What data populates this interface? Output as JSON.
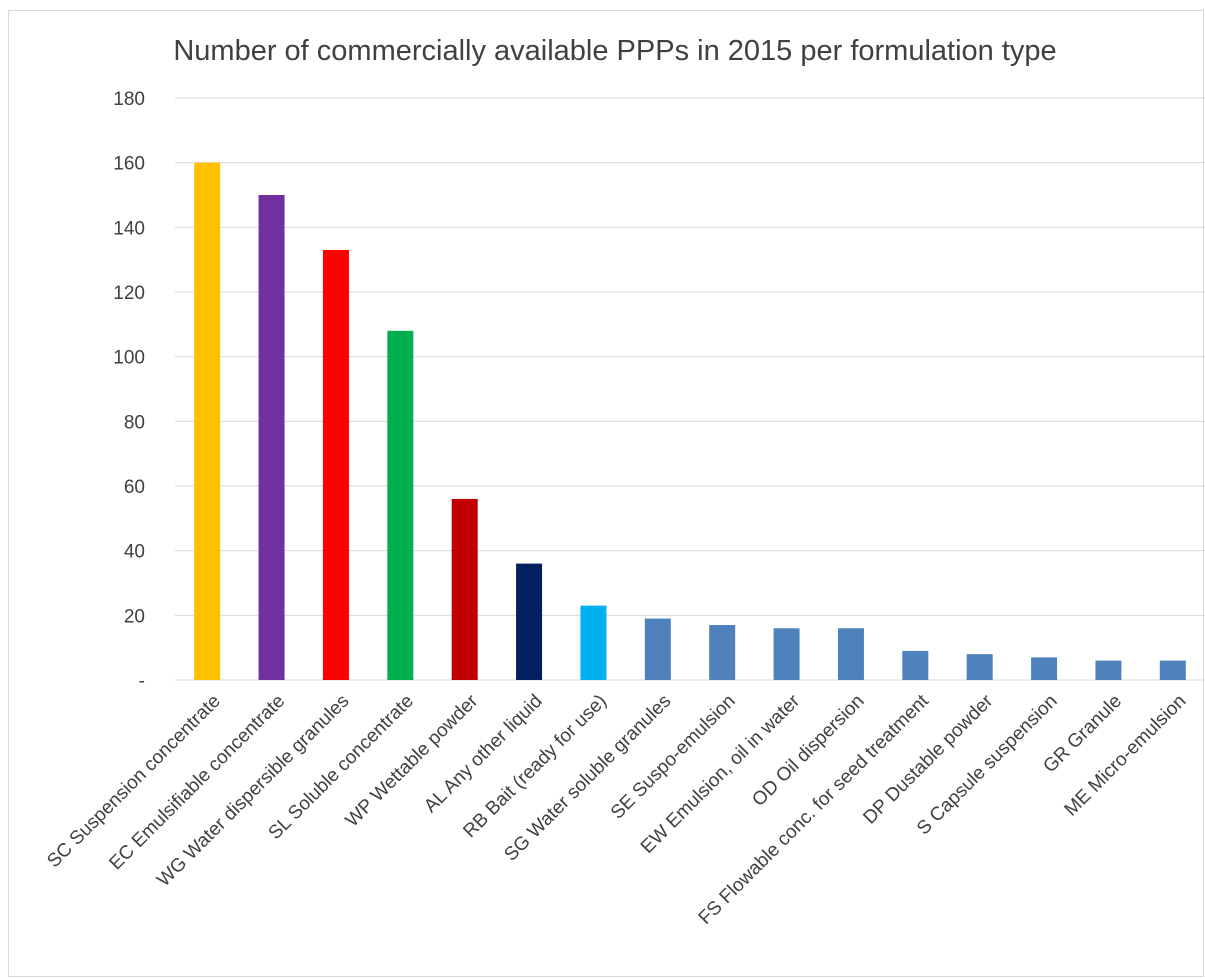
{
  "chart_data": {
    "type": "bar",
    "title": "Number of commercially available PPPs in 2015 per formulation type",
    "xlabel": "",
    "ylabel": "",
    "ylim": [
      0,
      180
    ],
    "y_ticks": [
      {
        "value": 0,
        "label": "-"
      },
      {
        "value": 20,
        "label": "20"
      },
      {
        "value": 40,
        "label": "40"
      },
      {
        "value": 60,
        "label": "60"
      },
      {
        "value": 80,
        "label": "80"
      },
      {
        "value": 100,
        "label": "100"
      },
      {
        "value": 120,
        "label": "120"
      },
      {
        "value": 140,
        "label": "140"
      },
      {
        "value": 160,
        "label": "160"
      },
      {
        "value": 180,
        "label": "180"
      }
    ],
    "grid": true,
    "categories": [
      "SC Suspension concentrate",
      "EC Emulsifiable concentrate",
      "WG Water dispersible granules",
      "SL Soluble concentrate",
      "WP Wettable powder",
      "AL Any other liquid",
      "RB Bait (ready for use)",
      "SG Water soluble granules",
      "SE Suspo-emulsion",
      "EW Emulsion, oil in water",
      "OD Oil dispersion",
      "FS Flowable conc. for seed treatment",
      "DP Dustable powder",
      "S Capsule suspension",
      "GR Granule",
      "ME Micro-emulsion"
    ],
    "values": [
      160,
      150,
      133,
      108,
      56,
      36,
      23,
      19,
      17,
      16,
      16,
      9,
      8,
      7,
      6,
      6
    ],
    "colors": [
      "#ffc000",
      "#7030a0",
      "#ff0000",
      "#00b050",
      "#c00000",
      "#002060",
      "#00b0f0",
      "#4f81bd",
      "#4f81bd",
      "#4f81bd",
      "#4f81bd",
      "#4f81bd",
      "#4f81bd",
      "#4f81bd",
      "#4f81bd",
      "#4f81bd"
    ],
    "gridline_color": "#d9d9d9"
  }
}
